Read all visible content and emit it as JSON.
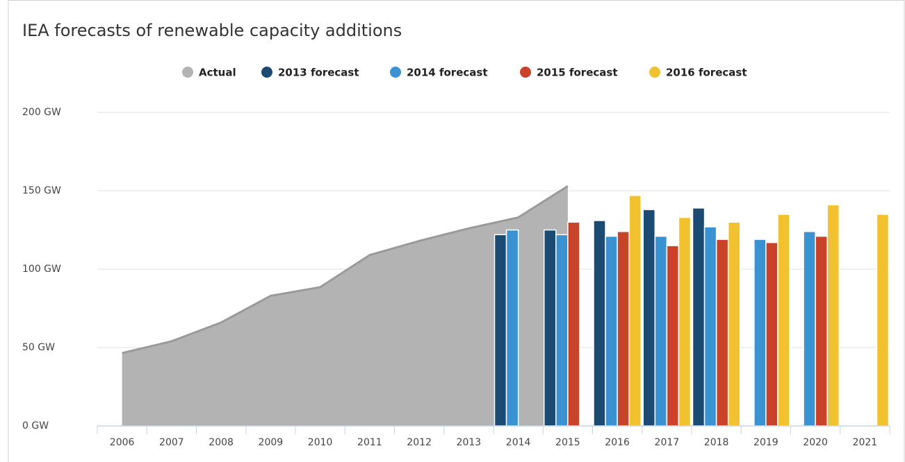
{
  "chart_data": {
    "type": "bar",
    "title": "IEA forecasts of renewable capacity additions",
    "categories": [
      "2006",
      "2007",
      "2008",
      "2009",
      "2010",
      "2011",
      "2012",
      "2013",
      "2014",
      "2015",
      "2016",
      "2017",
      "2018",
      "2019",
      "2020",
      "2021"
    ],
    "series": [
      {
        "name": "Actual",
        "type": "area",
        "color": "#b3b3b3",
        "line_color": "#9a9a9a",
        "values": [
          46.5,
          54,
          66,
          83,
          88.5,
          109,
          118,
          126,
          133,
          153,
          null,
          null,
          null,
          null,
          null,
          null
        ]
      },
      {
        "name": "2013 forecast",
        "color": "#1b4a73",
        "values": [
          null,
          null,
          null,
          null,
          null,
          null,
          null,
          null,
          122,
          125,
          131,
          138,
          139,
          null,
          null,
          null
        ]
      },
      {
        "name": "2014 forecast",
        "color": "#3b92d2",
        "values": [
          null,
          null,
          null,
          null,
          null,
          null,
          null,
          null,
          125,
          122,
          121,
          121,
          127,
          119,
          124,
          null
        ]
      },
      {
        "name": "2015 forecast",
        "color": "#c9432a",
        "values": [
          null,
          null,
          null,
          null,
          null,
          null,
          null,
          null,
          null,
          130,
          124,
          115,
          119,
          117,
          121,
          null
        ]
      },
      {
        "name": "2016 forecast",
        "color": "#f2c12e",
        "values": [
          null,
          null,
          null,
          null,
          null,
          null,
          null,
          null,
          null,
          null,
          147,
          133,
          130,
          135,
          141,
          135
        ]
      }
    ],
    "ylim": [
      0,
      200
    ],
    "yticks": [
      {
        "value": 0,
        "label": "0 GW"
      },
      {
        "value": 50,
        "label": "50 GW"
      },
      {
        "value": 100,
        "label": "100 GW"
      },
      {
        "value": 150,
        "label": "150 GW"
      },
      {
        "value": 200,
        "label": "200 GW"
      }
    ],
    "grid": true,
    "legend": "top"
  }
}
